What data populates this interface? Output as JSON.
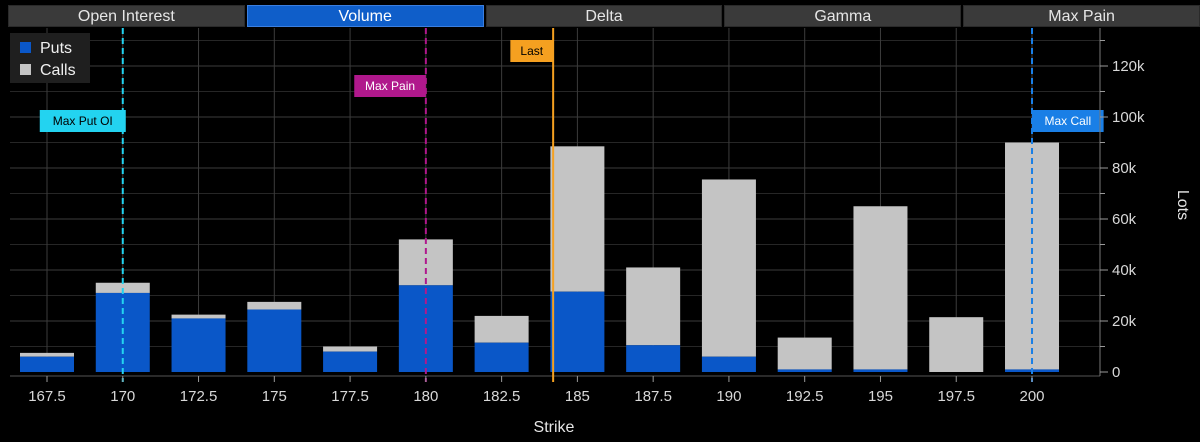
{
  "tabs": [
    {
      "label": "Open Interest",
      "active": false
    },
    {
      "label": "Volume",
      "active": true
    },
    {
      "label": "Delta",
      "active": false
    },
    {
      "label": "Gamma",
      "active": false
    },
    {
      "label": "Max Pain",
      "active": false
    }
  ],
  "chart_data": {
    "type": "bar",
    "stacked": true,
    "categories": [
      "167.5",
      "170",
      "172.5",
      "175",
      "177.5",
      "180",
      "182.5",
      "185",
      "187.5",
      "190",
      "192.5",
      "195",
      "197.5",
      "200"
    ],
    "series": [
      {
        "name": "Puts",
        "color": "#0a57c8",
        "values": [
          6000,
          31000,
          21000,
          24500,
          8000,
          34000,
          11500,
          31500,
          10500,
          6000,
          1000,
          1000,
          0,
          1000
        ]
      },
      {
        "name": "Calls",
        "color": "#c4c4c4",
        "values": [
          1500,
          4000,
          1500,
          3000,
          2000,
          18000,
          10500,
          57000,
          30500,
          69500,
          12500,
          64000,
          21500,
          89000
        ]
      }
    ],
    "xlabel": "Strike",
    "ylabel": "Lots",
    "ylim": [
      0,
      135000
    ],
    "yticks": [
      0,
      20000,
      40000,
      60000,
      80000,
      100000,
      120000
    ],
    "ytick_labels": [
      "0",
      "20k",
      "40k",
      "60k",
      "80k",
      "100k",
      "120k"
    ],
    "y_axis_side": "right",
    "grid": true,
    "legend_position": "top-left",
    "markers": [
      {
        "label": "Max Put OI",
        "x": 170,
        "color": "#23d3f0",
        "text_color": "#000000",
        "style": "dashed",
        "label_row": 3
      },
      {
        "label": "Max Pain",
        "x": 180,
        "color": "#b0188c",
        "text_color": "#ffffff",
        "style": "dashed",
        "label_row": 2
      },
      {
        "label": "Last",
        "x": 184.2,
        "color": "#f5a020",
        "text_color": "#000000",
        "style": "solid",
        "label_row": 1
      },
      {
        "label": "Max Call",
        "x": 200,
        "color": "#1a7fe6",
        "text_color": "#ffffff",
        "style": "dashed",
        "label_row": 3
      }
    ]
  }
}
